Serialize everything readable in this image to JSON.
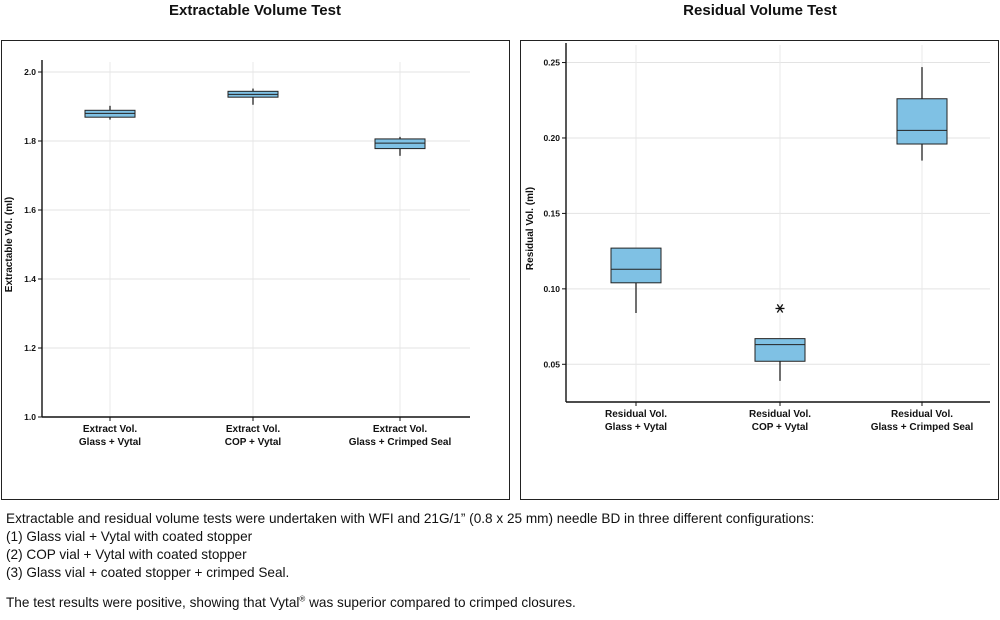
{
  "chart_data": [
    {
      "type": "box",
      "title": "Extractable Volume Test",
      "xlabel": "",
      "ylabel": "Extractable Vol. (ml)",
      "ylim": [
        1.0,
        2.0
      ],
      "yticks": [
        "1.0",
        "1.2",
        "1.4",
        "1.6",
        "1.8",
        "2.0"
      ],
      "grid": true,
      "fill_color": "#7fc1e4",
      "categories": [
        [
          "Extract Vol.",
          "Glass + Vytal"
        ],
        [
          "Extract Vol.",
          "COP + Vytal"
        ],
        [
          "Extract Vol.",
          "Glass + Crimped Seal"
        ]
      ],
      "boxes": [
        {
          "whisker_low": 1.862,
          "q1": 1.869,
          "median": 1.88,
          "q3": 1.889,
          "whisker_high": 1.902,
          "outliers": []
        },
        {
          "whisker_low": 1.905,
          "q1": 1.927,
          "median": 1.935,
          "q3": 1.944,
          "whisker_high": 1.952,
          "outliers": []
        },
        {
          "whisker_low": 1.757,
          "q1": 1.778,
          "median": 1.794,
          "q3": 1.806,
          "whisker_high": 1.812,
          "outliers": []
        }
      ]
    },
    {
      "type": "box",
      "title": "Residual Volume Test",
      "xlabel": "",
      "ylabel": "Residual Vol. (ml)",
      "ylim": [
        0.025,
        0.255
      ],
      "yticks": [
        "0.05",
        "0.10",
        "0.15",
        "0.20",
        "0.25"
      ],
      "grid": true,
      "fill_color": "#7fc1e4",
      "categories": [
        [
          "Residual Vol.",
          "Glass + Vytal"
        ],
        [
          "Residual Vol.",
          "COP + Vytal"
        ],
        [
          "Residual Vol.",
          "Glass + Crimped Seal"
        ]
      ],
      "boxes": [
        {
          "whisker_low": 0.084,
          "q1": 0.104,
          "median": 0.113,
          "q3": 0.127,
          "whisker_high": 0.127,
          "outliers": []
        },
        {
          "whisker_low": 0.039,
          "q1": 0.052,
          "median": 0.063,
          "q3": 0.067,
          "whisker_high": 0.067,
          "outliers": [
            0.087
          ]
        },
        {
          "whisker_low": 0.185,
          "q1": 0.196,
          "median": 0.205,
          "q3": 0.226,
          "whisker_high": 0.247,
          "outliers": []
        }
      ]
    }
  ],
  "caption": {
    "intro": "Extractable and residual volume tests were undertaken with WFI and 21G/1” (0.8 x 25 mm) needle BD in three different configurations:",
    "items": [
      "(1) Glass vial + Vytal with coated stopper",
      "(2) COP vial + Vytal with coated stopper",
      "(3) Glass vial + coated stopper + crimped Seal."
    ],
    "conclusion_before": "The test results were positive, showing that Vytal",
    "conclusion_mark": "®",
    "conclusion_after": " was superior compared to crimped closures."
  }
}
